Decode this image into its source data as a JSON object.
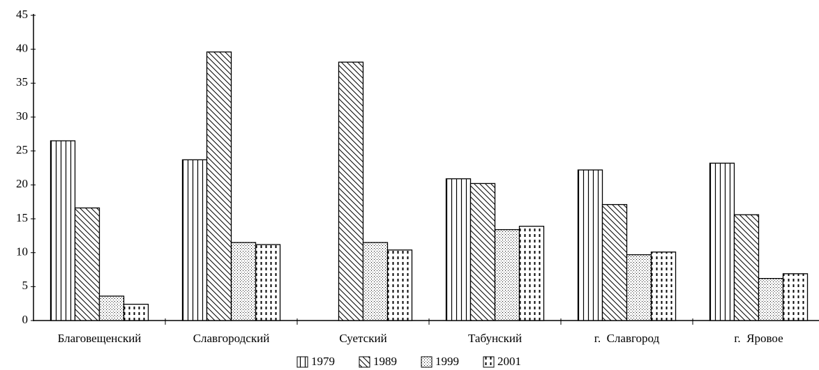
{
  "chart_data": {
    "type": "bar",
    "categories": [
      "Благовещенский",
      "Славгородский",
      "Суетский",
      "Табунский",
      "г.  Славгород",
      "г.  Яровое"
    ],
    "series": [
      {
        "name": "1979",
        "color": "#000000",
        "pattern": "vertical",
        "values": [
          26.5,
          23.7,
          null,
          20.9,
          22.2,
          23.2
        ]
      },
      {
        "name": "1989",
        "color": "#000000",
        "pattern": "diagonal",
        "values": [
          16.6,
          39.6,
          38.1,
          20.2,
          17.1,
          15.6
        ]
      },
      {
        "name": "1999",
        "color": "#000000",
        "pattern": "dotted",
        "values": [
          3.6,
          11.5,
          11.5,
          13.4,
          9.7,
          6.2
        ]
      },
      {
        "name": "2001",
        "color": "#000000",
        "pattern": "dashed",
        "values": [
          2.4,
          11.2,
          10.4,
          13.9,
          10.1,
          6.9
        ]
      }
    ],
    "ylim": [
      0,
      45
    ],
    "yticks": [
      0,
      5,
      10,
      15,
      20,
      25,
      30,
      35,
      40,
      45
    ],
    "grid": false,
    "legend": "bottom"
  }
}
